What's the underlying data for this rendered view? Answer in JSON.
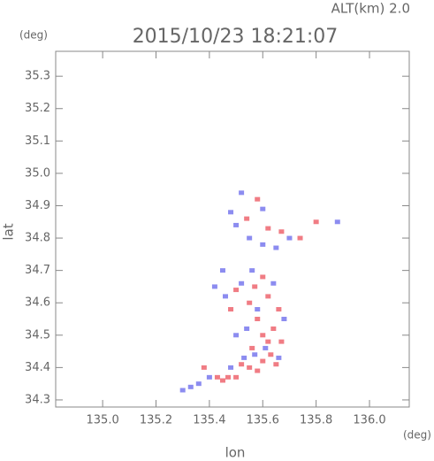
{
  "chart_data": {
    "type": "scatter",
    "title": "2015/10/23 18:21:07",
    "subtitle": "ALT(km) 2.0",
    "x_label": "lon",
    "y_label": "lat",
    "x_unit": "(deg)",
    "y_unit": "(deg)",
    "xlim": [
      134.824,
      136.149
    ],
    "ylim": [
      34.278,
      35.377
    ],
    "xticks": [
      {
        "value": 135.0,
        "label": "135.0"
      },
      135.2,
      135.4,
      135.6,
      135.8,
      {
        "value": 136.0,
        "label": "136.0"
      }
    ],
    "yticks": [
      34.3,
      34.4,
      34.5,
      34.6,
      34.7,
      34.8,
      34.9,
      {
        "value": 35.0,
        "label": "35.0"
      },
      35.1,
      35.2,
      35.3
    ],
    "series": [
      {
        "color": "#f07c84",
        "x": [
          135.43,
          135.45,
          135.47,
          135.5,
          135.52,
          135.55,
          135.58,
          135.6,
          135.63,
          135.65,
          135.62,
          135.6,
          135.64,
          135.58,
          135.55,
          135.5,
          135.57,
          135.62,
          135.48,
          135.66,
          135.6,
          135.62,
          135.67,
          135.58,
          135.54,
          135.74,
          135.8,
          135.38,
          135.56,
          135.67
        ],
        "y": [
          34.37,
          34.36,
          34.37,
          34.37,
          34.41,
          34.4,
          34.39,
          34.42,
          34.44,
          34.41,
          34.48,
          34.5,
          34.52,
          34.55,
          34.6,
          34.64,
          34.65,
          34.62,
          34.58,
          34.58,
          34.68,
          34.83,
          34.82,
          34.92,
          34.86,
          34.8,
          34.85,
          34.4,
          34.46,
          34.48
        ]
      },
      {
        "color": "#8c8cf0",
        "x": [
          135.3,
          135.33,
          135.36,
          135.4,
          135.48,
          135.53,
          135.57,
          135.5,
          135.54,
          135.58,
          135.46,
          135.52,
          135.56,
          135.64,
          135.42,
          135.68,
          135.6,
          135.55,
          135.5,
          135.48,
          135.52,
          135.6,
          135.65,
          135.7,
          135.88,
          135.45,
          135.61,
          135.66
        ],
        "y": [
          34.33,
          34.34,
          34.35,
          34.37,
          34.4,
          34.43,
          34.44,
          34.5,
          34.52,
          34.58,
          34.62,
          34.66,
          34.7,
          34.66,
          34.65,
          34.55,
          34.78,
          34.8,
          34.84,
          34.88,
          34.94,
          34.89,
          34.77,
          34.8,
          34.85,
          34.7,
          34.46,
          34.43
        ]
      }
    ]
  }
}
